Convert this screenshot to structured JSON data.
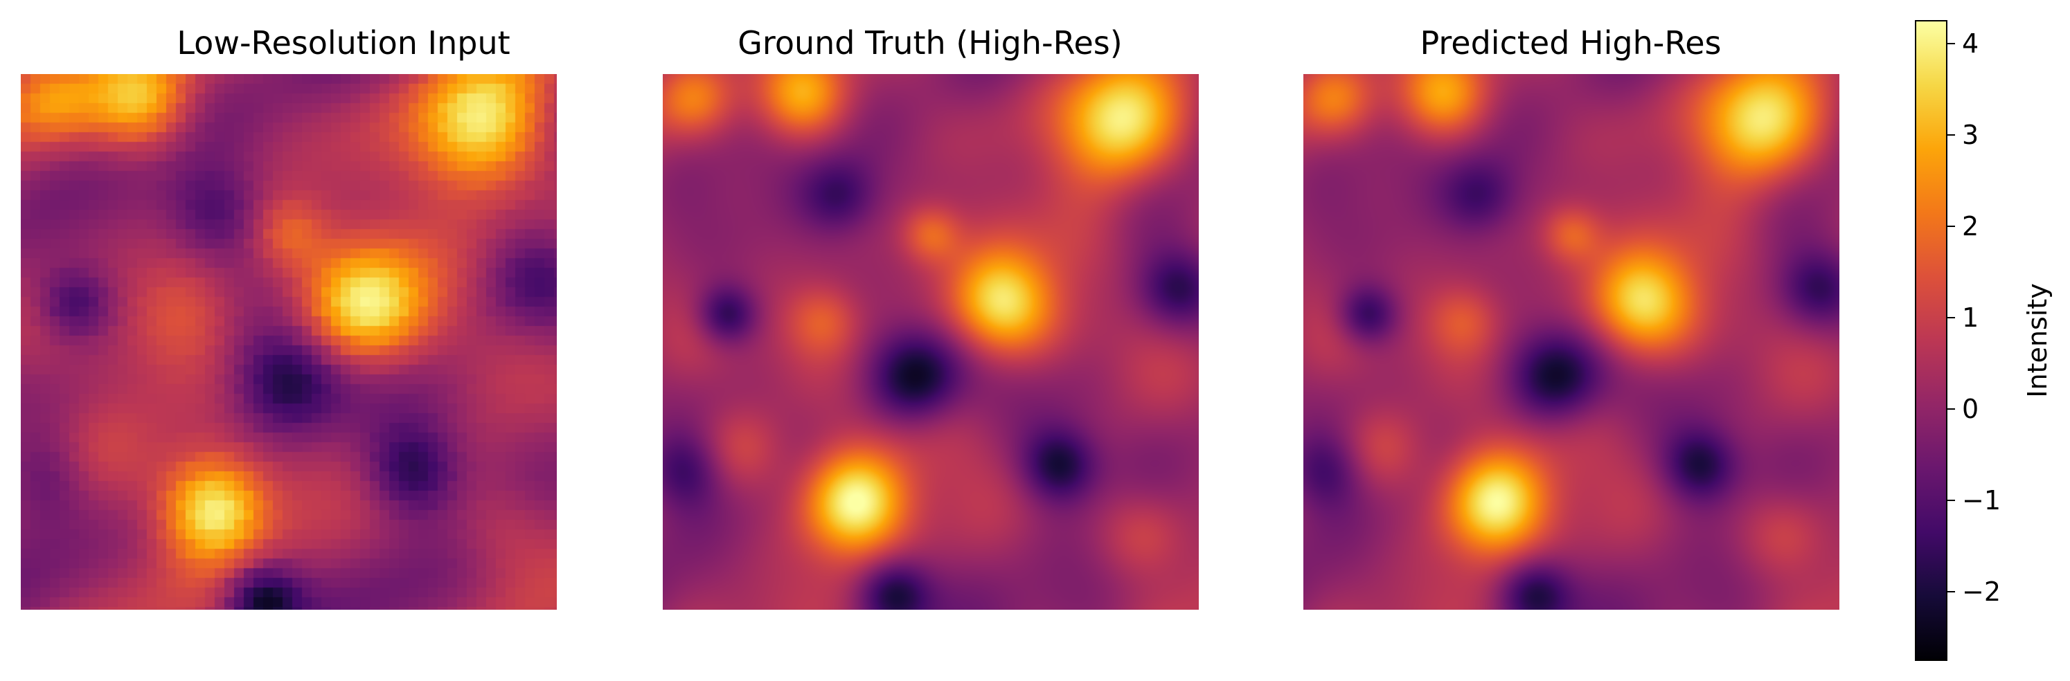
{
  "chart_data": {
    "type": "heatmap",
    "colormap": "inferno",
    "panels": [
      {
        "title": "Low-Resolution Input",
        "style": "pixelated",
        "blobs": [
          {
            "x": 0.22,
            "y": 0.05,
            "v": 3.2,
            "r": 0.07
          },
          {
            "x": 0.87,
            "y": 0.1,
            "v": 3.6,
            "r": 0.09
          },
          {
            "x": 0.64,
            "y": 0.43,
            "v": 3.5,
            "r": 0.08
          },
          {
            "x": 0.36,
            "y": 0.81,
            "v": 4.1,
            "r": 0.07
          },
          {
            "x": 0.06,
            "y": 0.05,
            "v": 1.8,
            "r": 0.06
          },
          {
            "x": 0.3,
            "y": 0.45,
            "v": 1.6,
            "r": 0.07
          },
          {
            "x": 0.49,
            "y": 0.58,
            "v": -2.4,
            "r": 0.07
          },
          {
            "x": 0.73,
            "y": 0.74,
            "v": -2.2,
            "r": 0.06
          },
          {
            "x": 0.45,
            "y": 0.98,
            "v": -2.5,
            "r": 0.05
          },
          {
            "x": 0.1,
            "y": 0.43,
            "v": -2.0,
            "r": 0.05
          },
          {
            "x": 0.36,
            "y": 0.26,
            "v": -1.4,
            "r": 0.06
          },
          {
            "x": 0.8,
            "y": 0.33,
            "v": 0.9,
            "r": 0.09
          },
          {
            "x": 0.05,
            "y": 0.75,
            "v": -1.0,
            "r": 0.06
          },
          {
            "x": 0.96,
            "y": 0.38,
            "v": -1.3,
            "r": 0.06
          },
          {
            "x": 0.15,
            "y": 0.7,
            "v": 1.3,
            "r": 0.08
          },
          {
            "x": 0.55,
            "y": 0.18,
            "v": -0.4,
            "r": 0.08
          },
          {
            "x": 0.5,
            "y": 0.3,
            "v": 1.6,
            "r": 0.05
          },
          {
            "x": 0.9,
            "y": 0.85,
            "v": 1.2,
            "r": 0.07
          }
        ]
      },
      {
        "title": "Ground Truth (High-Res)",
        "style": "smooth",
        "blobs": [
          {
            "x": 0.26,
            "y": 0.04,
            "v": 3.0,
            "r": 0.06
          },
          {
            "x": 0.86,
            "y": 0.09,
            "v": 3.7,
            "r": 0.08
          },
          {
            "x": 0.63,
            "y": 0.43,
            "v": 3.6,
            "r": 0.07
          },
          {
            "x": 0.36,
            "y": 0.8,
            "v": 4.2,
            "r": 0.07
          },
          {
            "x": 0.06,
            "y": 0.05,
            "v": 1.6,
            "r": 0.05
          },
          {
            "x": 0.3,
            "y": 0.46,
            "v": 1.7,
            "r": 0.05
          },
          {
            "x": 0.47,
            "y": 0.57,
            "v": -2.6,
            "r": 0.06
          },
          {
            "x": 0.74,
            "y": 0.73,
            "v": -2.4,
            "r": 0.05
          },
          {
            "x": 0.43,
            "y": 0.97,
            "v": -2.6,
            "r": 0.05
          },
          {
            "x": 0.12,
            "y": 0.45,
            "v": -2.2,
            "r": 0.04
          },
          {
            "x": 0.33,
            "y": 0.23,
            "v": -1.5,
            "r": 0.05
          },
          {
            "x": 0.78,
            "y": 0.32,
            "v": 1.0,
            "r": 0.07
          },
          {
            "x": 0.04,
            "y": 0.74,
            "v": -1.4,
            "r": 0.05
          },
          {
            "x": 0.96,
            "y": 0.4,
            "v": -1.6,
            "r": 0.05
          },
          {
            "x": 0.15,
            "y": 0.7,
            "v": 1.4,
            "r": 0.06
          },
          {
            "x": 0.55,
            "y": 0.18,
            "v": -0.5,
            "r": 0.07
          },
          {
            "x": 0.5,
            "y": 0.3,
            "v": 1.8,
            "r": 0.04
          },
          {
            "x": 0.9,
            "y": 0.86,
            "v": 1.3,
            "r": 0.06
          }
        ]
      },
      {
        "title": "Predicted High-Res",
        "style": "smooth",
        "blobs": [
          {
            "x": 0.26,
            "y": 0.04,
            "v": 2.9,
            "r": 0.06
          },
          {
            "x": 0.86,
            "y": 0.09,
            "v": 3.6,
            "r": 0.08
          },
          {
            "x": 0.63,
            "y": 0.43,
            "v": 3.5,
            "r": 0.07
          },
          {
            "x": 0.36,
            "y": 0.8,
            "v": 4.1,
            "r": 0.07
          },
          {
            "x": 0.06,
            "y": 0.05,
            "v": 1.6,
            "r": 0.05
          },
          {
            "x": 0.3,
            "y": 0.46,
            "v": 1.6,
            "r": 0.05
          },
          {
            "x": 0.47,
            "y": 0.57,
            "v": -2.5,
            "r": 0.06
          },
          {
            "x": 0.74,
            "y": 0.73,
            "v": -2.3,
            "r": 0.05
          },
          {
            "x": 0.43,
            "y": 0.97,
            "v": -2.5,
            "r": 0.05
          },
          {
            "x": 0.12,
            "y": 0.45,
            "v": -2.1,
            "r": 0.04
          },
          {
            "x": 0.33,
            "y": 0.23,
            "v": -1.4,
            "r": 0.05
          },
          {
            "x": 0.78,
            "y": 0.32,
            "v": 1.0,
            "r": 0.07
          },
          {
            "x": 0.04,
            "y": 0.74,
            "v": -1.3,
            "r": 0.05
          },
          {
            "x": 0.96,
            "y": 0.4,
            "v": -1.5,
            "r": 0.05
          },
          {
            "x": 0.15,
            "y": 0.7,
            "v": 1.4,
            "r": 0.06
          },
          {
            "x": 0.55,
            "y": 0.18,
            "v": -0.5,
            "r": 0.07
          },
          {
            "x": 0.5,
            "y": 0.3,
            "v": 1.7,
            "r": 0.04
          },
          {
            "x": 0.9,
            "y": 0.86,
            "v": 1.3,
            "r": 0.06
          }
        ]
      }
    ],
    "colorbar": {
      "label": "Intensity",
      "vmin": -2.75,
      "vmax": 4.25,
      "ticks": [
        -2,
        -1,
        0,
        1,
        2,
        3,
        4
      ],
      "tick_labels": [
        "−2",
        "−1",
        "0",
        "1",
        "2",
        "3",
        "4"
      ]
    }
  }
}
